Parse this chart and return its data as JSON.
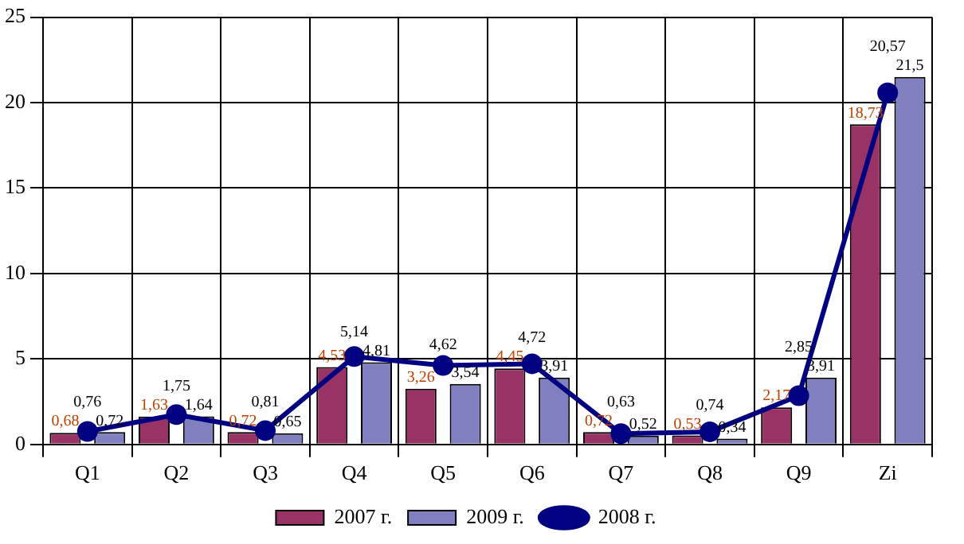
{
  "chart_data": {
    "type": "bar",
    "categories": [
      "Q1",
      "Q2",
      "Q3",
      "Q4",
      "Q5",
      "Q6",
      "Q7",
      "Q8",
      "Q9",
      "Zi"
    ],
    "series": [
      {
        "name": "2007 г.",
        "color": "#993366",
        "values": [
          0.68,
          1.63,
          0.72,
          4.53,
          3.26,
          4.45,
          0.72,
          0.53,
          2.17,
          18.73
        ],
        "value_labels": [
          "0,68",
          "1,63",
          "0,72",
          "4,53",
          "3,26",
          "4,45",
          "0,72",
          "0,53",
          "2,17",
          "18,73"
        ]
      },
      {
        "name": "2009 г.",
        "color": "#8080c0",
        "values": [
          0.72,
          1.64,
          0.65,
          4.81,
          3.54,
          3.91,
          0.52,
          0.34,
          3.91,
          21.5
        ],
        "value_labels": [
          "0,72",
          "1,64",
          "0,65",
          "4,81",
          "3,54",
          "3,91",
          "0,52",
          "0,34",
          "3,91",
          "21,5"
        ]
      },
      {
        "name": "2008 г.",
        "type": "line",
        "color": "#000080",
        "values": [
          0.76,
          1.75,
          0.81,
          5.14,
          4.62,
          4.72,
          0.63,
          0.74,
          2.85,
          20.57
        ],
        "value_labels": [
          "0,76",
          "1,75",
          "0,81",
          "5,14",
          "4,62",
          "4,72",
          "0,63",
          "0,74",
          "2,85",
          "20,57"
        ]
      }
    ],
    "ylim": [
      0,
      25
    ],
    "yticks": [
      0,
      5,
      10,
      15,
      20,
      25
    ],
    "grid": true,
    "legend": "bottom",
    "marker": "circle",
    "line_style": "solid"
  }
}
